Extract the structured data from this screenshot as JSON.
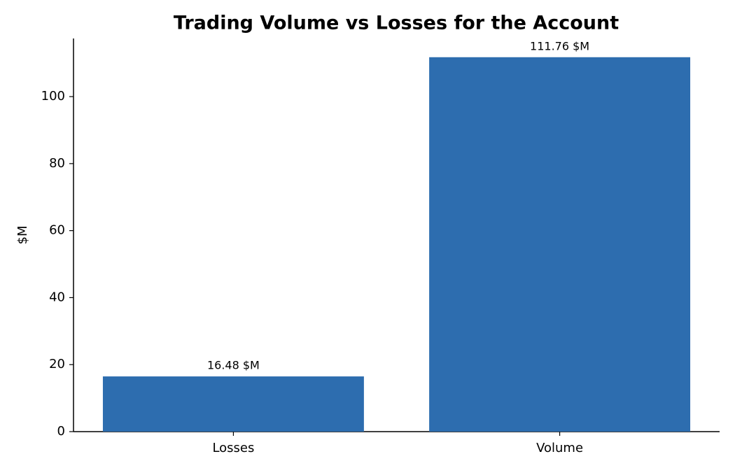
{
  "chart_data": {
    "type": "bar",
    "title": "Trading Volume vs Losses for the Account",
    "ylabel": "$M",
    "categories": [
      "Losses",
      "Volume"
    ],
    "values": [
      16.48,
      111.76
    ],
    "value_labels": [
      "16.48 $M",
      "111.76 $M"
    ],
    "color": "#2d6daf",
    "ylim": [
      0,
      117.35
    ],
    "yticks": [
      0,
      20,
      40,
      60,
      80,
      100
    ],
    "grid": false
  }
}
